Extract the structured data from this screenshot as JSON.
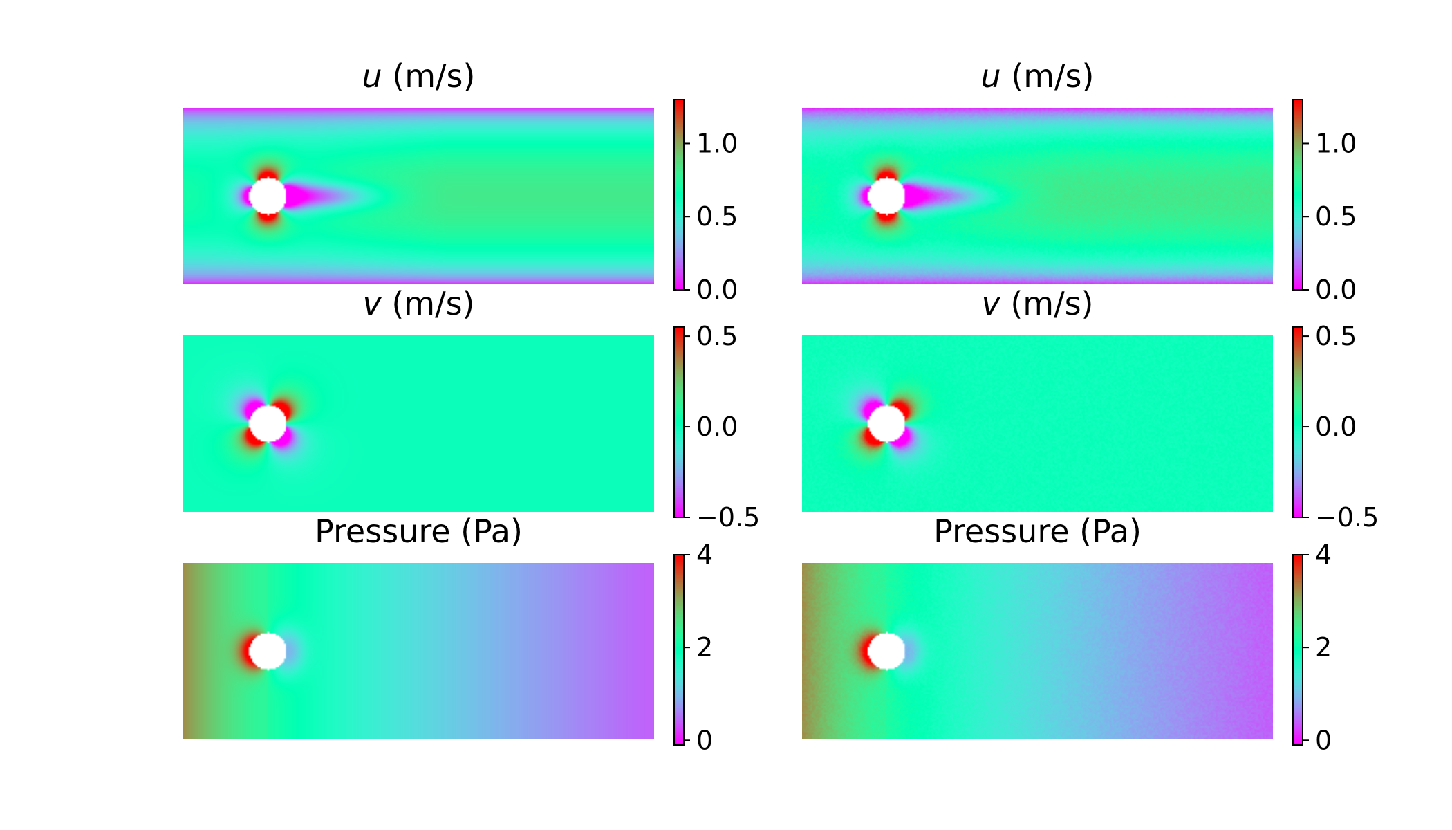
{
  "chart_data": [
    {
      "type": "heatmap",
      "title": "u (m/s)",
      "title_symbol": "u",
      "title_unit": " (m/s)",
      "field": "u",
      "variant": "reference",
      "colormap": "rainbow",
      "colorbar": {
        "range": [
          0.0,
          1.3
        ],
        "ticks": [
          0.0,
          0.5,
          1.0
        ],
        "tick_labels": [
          "0.0",
          "0.5",
          "1.0"
        ]
      }
    },
    {
      "type": "heatmap",
      "title": "u (m/s)",
      "title_symbol": "u",
      "title_unit": " (m/s)",
      "field": "u",
      "variant": "prediction",
      "colormap": "rainbow",
      "colorbar": {
        "range": [
          0.0,
          1.3
        ],
        "ticks": [
          0.0,
          0.5,
          1.0
        ],
        "tick_labels": [
          "0.0",
          "0.5",
          "1.0"
        ]
      }
    },
    {
      "type": "heatmap",
      "title": "v (m/s)",
      "title_symbol": "v",
      "title_unit": " (m/s)",
      "field": "v",
      "variant": "reference",
      "colormap": "rainbow",
      "colorbar": {
        "range": [
          -0.5,
          0.55
        ],
        "ticks": [
          -0.5,
          0.0,
          0.5
        ],
        "tick_labels": [
          "−0.5",
          "0.0",
          "0.5"
        ]
      }
    },
    {
      "type": "heatmap",
      "title": "v (m/s)",
      "title_symbol": "v",
      "title_unit": " (m/s)",
      "field": "v",
      "variant": "prediction",
      "colormap": "rainbow",
      "colorbar": {
        "range": [
          -0.5,
          0.55
        ],
        "ticks": [
          -0.5,
          0.0,
          0.5
        ],
        "tick_labels": [
          "−0.5",
          "0.0",
          "0.5"
        ]
      }
    },
    {
      "type": "heatmap",
      "title": "Pressure (Pa)",
      "title_symbol": "",
      "title_unit": "Pressure (Pa)",
      "field": "p",
      "variant": "reference",
      "colormap": "rainbow",
      "colorbar": {
        "range": [
          -0.1,
          4.0
        ],
        "ticks": [
          0,
          2,
          4
        ],
        "tick_labels": [
          "0",
          "2",
          "4"
        ]
      }
    },
    {
      "type": "heatmap",
      "title": "Pressure (Pa)",
      "title_symbol": "",
      "title_unit": "Pressure (Pa)",
      "field": "p",
      "variant": "prediction",
      "colormap": "rainbow",
      "colorbar": {
        "range": [
          -0.1,
          4.0
        ],
        "ticks": [
          0,
          2,
          4
        ],
        "tick_labels": [
          "0",
          "2",
          "4"
        ]
      }
    }
  ]
}
